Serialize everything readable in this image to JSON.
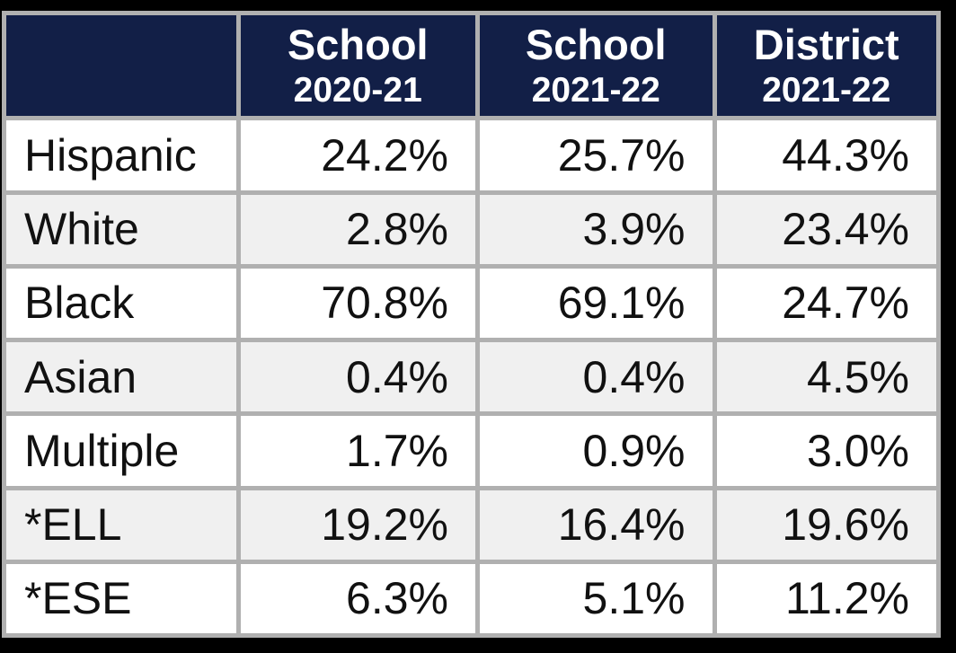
{
  "table": {
    "columns": [
      {
        "title": "School",
        "year": "2020-21"
      },
      {
        "title": "School",
        "year": "2021-22"
      },
      {
        "title": "District",
        "year": "2021-22"
      }
    ],
    "rows": [
      {
        "label": "Hispanic",
        "values": [
          "24.2%",
          "25.7%",
          "44.3%"
        ]
      },
      {
        "label": "White",
        "values": [
          "2.8%",
          "3.9%",
          "23.4%"
        ]
      },
      {
        "label": "Black",
        "values": [
          "70.8%",
          "69.1%",
          "24.7%"
        ]
      },
      {
        "label": "Asian",
        "values": [
          "0.4%",
          "0.4%",
          "4.5%"
        ]
      },
      {
        "label": "Multiple",
        "values": [
          "1.7%",
          "0.9%",
          "3.0%"
        ]
      },
      {
        "label": "*ELL",
        "values": [
          "19.2%",
          "16.4%",
          "19.6%"
        ]
      },
      {
        "label": "*ESE",
        "values": [
          "6.3%",
          "5.1%",
          "11.2%"
        ]
      }
    ]
  },
  "colors": {
    "header_bg": "#121f47",
    "header_text": "#ffffff",
    "grid_border": "#b0b0b0",
    "row_alt_bg": "#f0f0f0",
    "row_bg": "#ffffff",
    "frame": "#000000",
    "text": "#111111"
  },
  "chart_data": {
    "type": "table",
    "columns": [
      "",
      "School 2020-21",
      "School 2021-22",
      "District 2021-22"
    ],
    "rows": [
      [
        "Hispanic",
        "24.2%",
        "25.7%",
        "44.3%"
      ],
      [
        "White",
        "2.8%",
        "3.9%",
        "23.4%"
      ],
      [
        "Black",
        "70.8%",
        "69.1%",
        "24.7%"
      ],
      [
        "Asian",
        "0.4%",
        "0.4%",
        "4.5%"
      ],
      [
        "Multiple",
        "1.7%",
        "0.9%",
        "3.0%"
      ],
      [
        "*ELL",
        "19.2%",
        "16.4%",
        "19.6%"
      ],
      [
        "*ESE",
        "6.3%",
        "5.1%",
        "11.2%"
      ]
    ],
    "series": [
      {
        "name": "School 2020-21",
        "values": [
          24.2,
          2.8,
          70.8,
          0.4,
          1.7,
          19.2,
          6.3
        ]
      },
      {
        "name": "School 2021-22",
        "values": [
          25.7,
          3.9,
          69.1,
          0.4,
          0.9,
          16.4,
          5.1
        ]
      },
      {
        "name": "District 2021-22",
        "values": [
          44.3,
          23.4,
          24.7,
          4.5,
          3.0,
          19.6,
          11.2
        ]
      }
    ],
    "categories": [
      "Hispanic",
      "White",
      "Black",
      "Asian",
      "Multiple",
      "*ELL",
      "*ESE"
    ]
  }
}
